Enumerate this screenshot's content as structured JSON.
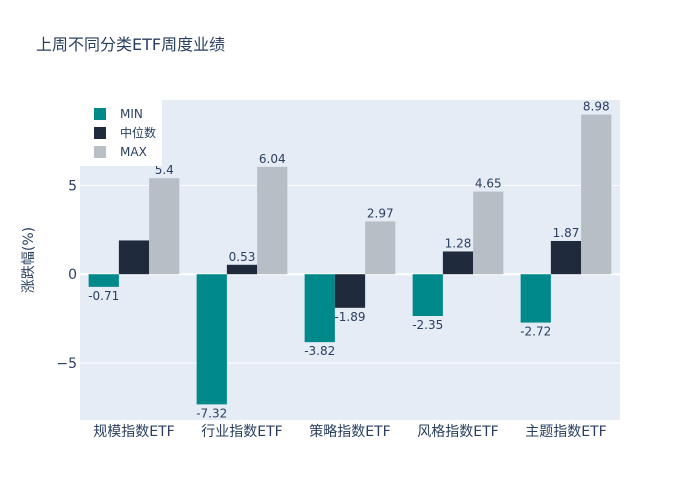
{
  "chart_data": {
    "type": "bar",
    "title": "上周不同分类ETF周度业绩",
    "xlabel": "",
    "ylabel": "涨跌幅(%)",
    "categories": [
      "规模指数ETF",
      "行业指数ETF",
      "策略指数ETF",
      "风格指数ETF",
      "主题指数ETF"
    ],
    "series": [
      {
        "name": "MIN",
        "color": "#00898a",
        "values": [
          -0.71,
          -7.32,
          -3.82,
          -2.35,
          -2.72
        ],
        "labels": [
          "-0.71",
          "-7.32",
          "-3.82",
          "-2.35",
          "-2.72"
        ]
      },
      {
        "name": "中位数",
        "color": "#1f2a3c",
        "values": [
          1.9,
          0.53,
          -1.89,
          1.28,
          1.87
        ],
        "labels": [
          "",
          "0.53",
          "-1.89",
          "1.28",
          "1.87"
        ]
      },
      {
        "name": "MAX",
        "color": "#b8bec6",
        "values": [
          5.4,
          6.04,
          2.97,
          4.65,
          8.98
        ],
        "labels": [
          "5.4",
          "6.04",
          "2.97",
          "4.65",
          "8.98"
        ]
      }
    ],
    "y_ticks": [
      -5,
      0,
      5
    ],
    "y_tick_labels": [
      "−5",
      "0",
      "5"
    ],
    "ylim": [
      -8.2,
      9.8
    ],
    "legend_position": "top-left",
    "grid": true
  }
}
